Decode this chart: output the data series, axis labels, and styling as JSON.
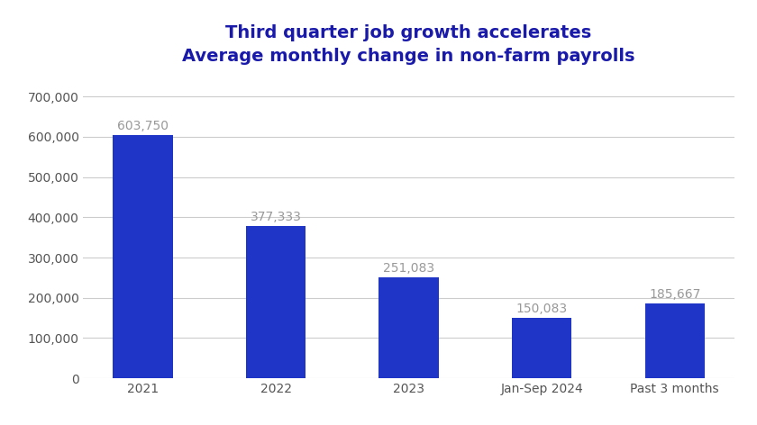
{
  "categories": [
    "2021",
    "2022",
    "2023",
    "Jan-Sep 2024",
    "Past 3 months"
  ],
  "values": [
    603750,
    377333,
    251083,
    150083,
    185667
  ],
  "labels": [
    "603,750",
    "377,333",
    "251,083",
    "150,083",
    "185,667"
  ],
  "bar_color": "#1f35c7",
  "title_line1": "Third quarter job growth accelerates",
  "title_line2": "Average monthly change in non-farm payrolls",
  "title_color": "#1a1aaa",
  "label_color": "#999999",
  "ylim": [
    0,
    750000
  ],
  "yticks": [
    0,
    100000,
    200000,
    300000,
    400000,
    500000,
    600000,
    700000
  ],
  "background_color": "#ffffff",
  "grid_color": "#cccccc",
  "title_fontsize": 14,
  "subtitle_fontsize": 12,
  "tick_label_fontsize": 10,
  "bar_label_fontsize": 10
}
